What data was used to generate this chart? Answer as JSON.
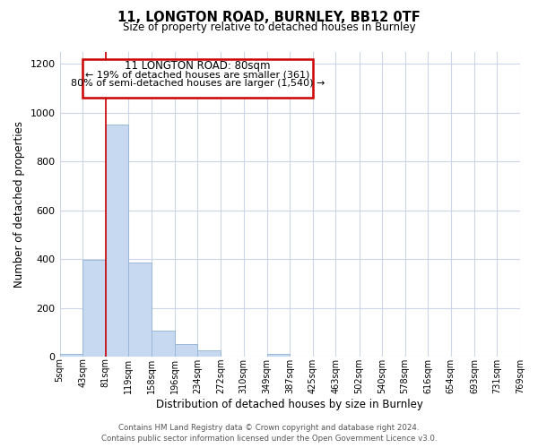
{
  "title": "11, LONGTON ROAD, BURNLEY, BB12 0TF",
  "subtitle": "Size of property relative to detached houses in Burnley",
  "xlabel": "Distribution of detached houses by size in Burnley",
  "ylabel": "Number of detached properties",
  "bar_edges": [
    5,
    43,
    81,
    119,
    158,
    196,
    234,
    272,
    310,
    349,
    387,
    425,
    463,
    502,
    540,
    578,
    616,
    654,
    693,
    731,
    769
  ],
  "bar_heights": [
    10,
    395,
    950,
    385,
    105,
    50,
    25,
    0,
    0,
    10,
    0,
    0,
    0,
    0,
    0,
    0,
    0,
    0,
    0,
    0
  ],
  "bar_color": "#c6d9f1",
  "bar_edge_color": "#9ab8d8",
  "tick_labels": [
    "5sqm",
    "43sqm",
    "81sqm",
    "119sqm",
    "158sqm",
    "196sqm",
    "234sqm",
    "272sqm",
    "310sqm",
    "349sqm",
    "387sqm",
    "425sqm",
    "463sqm",
    "502sqm",
    "540sqm",
    "578sqm",
    "616sqm",
    "654sqm",
    "693sqm",
    "731sqm",
    "769sqm"
  ],
  "property_line_x": 81,
  "property_line_color": "#cc0000",
  "annotation_title": "11 LONGTON ROAD: 80sqm",
  "annotation_line1": "← 19% of detached houses are smaller (361)",
  "annotation_line2": "80% of semi-detached houses are larger (1,540) →",
  "annotation_box_color": "#cc0000",
  "ylim": [
    0,
    1250
  ],
  "yticks": [
    0,
    200,
    400,
    600,
    800,
    1000,
    1200
  ],
  "footer_line1": "Contains HM Land Registry data © Crown copyright and database right 2024.",
  "footer_line2": "Contains public sector information licensed under the Open Government Licence v3.0.",
  "background_color": "#ffffff",
  "grid_color": "#ccd6e8"
}
